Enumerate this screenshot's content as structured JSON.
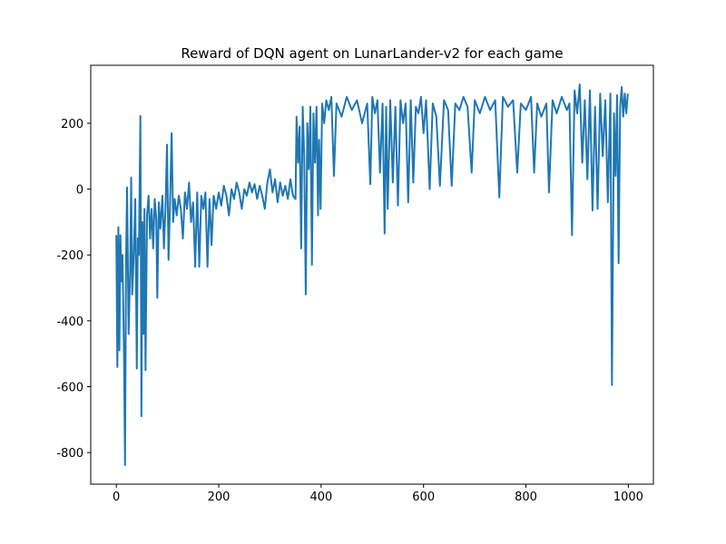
{
  "chart_data": {
    "type": "line",
    "title": "Reward of DQN agent on LunarLander-v2 for each game",
    "x": [
      0,
      2,
      4,
      6,
      8,
      10,
      12,
      15,
      17,
      19,
      21,
      24,
      27,
      29,
      31,
      34,
      37,
      40,
      42,
      44,
      47,
      49,
      51,
      53,
      55,
      57,
      60,
      63,
      66,
      69,
      72,
      75,
      78,
      80,
      83,
      86,
      90,
      93,
      96,
      99,
      102,
      105,
      108,
      111,
      114,
      118,
      122,
      126,
      130,
      134,
      138,
      142,
      146,
      150,
      154,
      158,
      162,
      166,
      170,
      174,
      178,
      182,
      186,
      190,
      195,
      200,
      205,
      210,
      215,
      220,
      225,
      230,
      235,
      240,
      245,
      250,
      255,
      260,
      265,
      270,
      275,
      280,
      285,
      290,
      295,
      300,
      305,
      310,
      315,
      320,
      325,
      330,
      335,
      340,
      345,
      350,
      352,
      355,
      358,
      361,
      364,
      367,
      370,
      373,
      376,
      379,
      382,
      385,
      388,
      391,
      394,
      396,
      399,
      402,
      406,
      410,
      415,
      420,
      425,
      430,
      440,
      450,
      460,
      470,
      480,
      490,
      496,
      500,
      505,
      510,
      515,
      520,
      524,
      527,
      530,
      535,
      540,
      545,
      550,
      555,
      560,
      565,
      570,
      575,
      580,
      585,
      590,
      595,
      600,
      605,
      612,
      618,
      625,
      632,
      640,
      648,
      655,
      662,
      670,
      678,
      686,
      694,
      700,
      710,
      720,
      730,
      740,
      748,
      755,
      765,
      775,
      783,
      790,
      800,
      810,
      816,
      822,
      830,
      840,
      845,
      852,
      860,
      870,
      880,
      885,
      890,
      895,
      900,
      905,
      910,
      915,
      920,
      925,
      930,
      935,
      940,
      945,
      950,
      955,
      960,
      965,
      968,
      972,
      975,
      978,
      981,
      984,
      987,
      990,
      993,
      996,
      999
    ],
    "series": [
      {
        "name": "reward",
        "color": "#1f77b4",
        "values": [
          -140,
          -540,
          -115,
          -490,
          -140,
          -280,
          -200,
          -500,
          -838,
          -220,
          5,
          -440,
          -250,
          35,
          -320,
          -200,
          -30,
          -545,
          -150,
          -200,
          222,
          -690,
          -100,
          -440,
          -60,
          -550,
          -80,
          -20,
          -150,
          -60,
          -180,
          -30,
          -90,
          -330,
          -40,
          -120,
          -20,
          -180,
          -60,
          135,
          -215,
          -40,
          170,
          -100,
          -30,
          -80,
          -20,
          -60,
          -150,
          -10,
          -60,
          20,
          -100,
          -40,
          -236,
          -10,
          -236,
          -20,
          -60,
          -10,
          -236,
          -30,
          -170,
          -20,
          -60,
          -10,
          -50,
          10,
          -20,
          -80,
          0,
          -30,
          20,
          -10,
          -60,
          0,
          -20,
          20,
          -10,
          15,
          -30,
          10,
          -20,
          -60,
          20,
          60,
          -10,
          30,
          -40,
          20,
          -20,
          10,
          -30,
          30,
          -20,
          -30,
          220,
          80,
          190,
          -180,
          250,
          100,
          -320,
          200,
          60,
          250,
          -230,
          230,
          80,
          250,
          -80,
          150,
          -60,
          260,
          200,
          270,
          240,
          280,
          40,
          260,
          220,
          280,
          240,
          270,
          200,
          260,
          15,
          280,
          230,
          270,
          50,
          260,
          -135,
          250,
          -60,
          270,
          20,
          250,
          -50,
          270,
          200,
          260,
          -40,
          270,
          20,
          250,
          230,
          280,
          170,
          270,
          0,
          260,
          220,
          10,
          270,
          240,
          10,
          260,
          240,
          280,
          250,
          50,
          270,
          230,
          280,
          240,
          270,
          -25,
          280,
          250,
          270,
          50,
          260,
          240,
          280,
          50,
          260,
          220,
          260,
          -10,
          270,
          230,
          280,
          240,
          260,
          -140,
          300,
          230,
          318,
          80,
          270,
          30,
          300,
          -65,
          250,
          -60,
          290,
          100,
          270,
          -40,
          290,
          -595,
          230,
          40,
          285,
          -225,
          250,
          310,
          220,
          290,
          230,
          290
        ]
      }
    ],
    "xlim": [
      -49.95,
      1048.95
    ],
    "ylim": [
      -896,
      376
    ],
    "xticks": [
      0,
      200,
      400,
      600,
      800,
      1000
    ],
    "yticks": [
      -800,
      -600,
      -400,
      -200,
      0,
      200
    ]
  }
}
